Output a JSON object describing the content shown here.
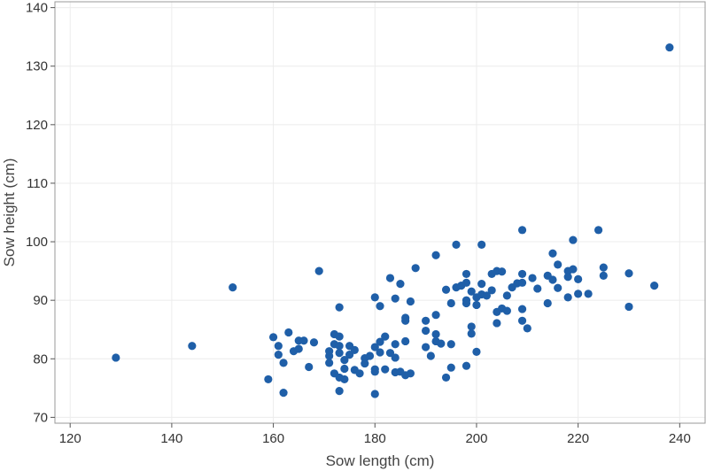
{
  "chart_data": {
    "type": "scatter",
    "xlabel": "Sow length (cm)",
    "ylabel": "Sow height (cm)",
    "xlim": [
      117,
      245
    ],
    "ylim": [
      69,
      141
    ],
    "xticks": [
      120,
      140,
      160,
      180,
      200,
      220,
      240
    ],
    "yticks": [
      70,
      80,
      90,
      100,
      110,
      120,
      130,
      140
    ],
    "grid": true,
    "marker_color": "#1f5fa8",
    "points": [
      [
        129,
        80.2
      ],
      [
        144,
        82.2
      ],
      [
        152,
        92.2
      ],
      [
        169,
        95
      ],
      [
        159,
        76.5
      ],
      [
        160,
        83.7
      ],
      [
        161,
        80.7
      ],
      [
        161,
        82.2
      ],
      [
        162,
        79.3
      ],
      [
        162,
        74.2
      ],
      [
        163,
        84.5
      ],
      [
        164,
        81.3
      ],
      [
        165,
        83.1
      ],
      [
        165,
        81.7
      ],
      [
        166,
        83.1
      ],
      [
        167,
        78.6
      ],
      [
        168,
        82.8
      ],
      [
        171,
        80.5
      ],
      [
        171,
        81.3
      ],
      [
        171,
        79.3
      ],
      [
        172,
        84.2
      ],
      [
        172,
        77.5
      ],
      [
        172,
        82.5
      ],
      [
        173,
        88.8
      ],
      [
        173,
        83.8
      ],
      [
        173,
        82.2
      ],
      [
        173,
        81
      ],
      [
        173,
        76.8
      ],
      [
        173,
        74.5
      ],
      [
        174,
        79.8
      ],
      [
        174,
        78.3
      ],
      [
        174,
        76.5
      ],
      [
        175,
        82.2
      ],
      [
        175,
        80.7
      ],
      [
        176,
        78.1
      ],
      [
        176,
        81.5
      ],
      [
        177,
        77.5
      ],
      [
        178,
        80.1
      ],
      [
        178,
        79.2
      ],
      [
        179,
        80.5
      ],
      [
        180,
        78.2
      ],
      [
        180,
        77.8
      ],
      [
        180,
        74
      ],
      [
        180,
        90.5
      ],
      [
        180,
        82
      ],
      [
        181,
        89
      ],
      [
        181,
        82.9
      ],
      [
        181,
        81.1
      ],
      [
        182,
        83.8
      ],
      [
        182,
        78.2
      ],
      [
        183,
        93.8
      ],
      [
        183,
        81
      ],
      [
        184,
        82.5
      ],
      [
        184,
        80.2
      ],
      [
        184,
        77.7
      ],
      [
        184,
        90.3
      ],
      [
        185,
        92.8
      ],
      [
        185,
        77.8
      ],
      [
        186,
        87
      ],
      [
        186,
        86.5
      ],
      [
        186,
        77.2
      ],
      [
        186,
        83
      ],
      [
        187,
        89.8
      ],
      [
        187,
        77.5
      ],
      [
        188,
        95.5
      ],
      [
        190,
        86.5
      ],
      [
        190,
        84.8
      ],
      [
        190,
        82
      ],
      [
        191,
        80.5
      ],
      [
        192,
        97.7
      ],
      [
        192,
        87.5
      ],
      [
        192,
        84.2
      ],
      [
        192,
        83
      ],
      [
        193,
        82.6
      ],
      [
        194,
        91.8
      ],
      [
        194,
        76.8
      ],
      [
        195,
        89.5
      ],
      [
        195,
        82.5
      ],
      [
        195,
        78.5
      ],
      [
        196,
        99.5
      ],
      [
        196,
        92.2
      ],
      [
        197,
        92.5
      ],
      [
        198,
        94.5
      ],
      [
        198,
        93
      ],
      [
        198,
        90
      ],
      [
        198,
        89.5
      ],
      [
        198,
        78.8
      ],
      [
        199,
        91.5
      ],
      [
        199,
        85.5
      ],
      [
        199,
        84.3
      ],
      [
        200,
        90.5
      ],
      [
        200,
        89.2
      ],
      [
        200,
        81.2
      ],
      [
        201,
        99.5
      ],
      [
        201,
        92.8
      ],
      [
        201,
        91
      ],
      [
        202,
        90.8
      ],
      [
        203,
        91.7
      ],
      [
        203,
        94.5
      ],
      [
        204,
        95
      ],
      [
        204,
        88
      ],
      [
        204,
        86.1
      ],
      [
        205,
        94.9
      ],
      [
        205,
        88.6
      ],
      [
        206,
        90.8
      ],
      [
        206,
        88.2
      ],
      [
        207,
        92.2
      ],
      [
        208,
        92.9
      ],
      [
        209,
        102
      ],
      [
        209,
        94.5
      ],
      [
        209,
        93
      ],
      [
        209,
        88.5
      ],
      [
        209,
        86.5
      ],
      [
        210,
        85.2
      ],
      [
        211,
        93.8
      ],
      [
        212,
        92
      ],
      [
        214,
        94.2
      ],
      [
        214,
        89.5
      ],
      [
        215,
        98
      ],
      [
        215,
        93.5
      ],
      [
        216,
        96.1
      ],
      [
        216,
        92.1
      ],
      [
        218,
        95
      ],
      [
        218,
        94
      ],
      [
        218,
        90.5
      ],
      [
        219,
        100.3
      ],
      [
        219,
        95.3
      ],
      [
        220,
        91.1
      ],
      [
        220,
        93.6
      ],
      [
        222,
        91.1
      ],
      [
        224,
        102
      ],
      [
        225,
        95.6
      ],
      [
        225,
        94.2
      ],
      [
        230,
        94.6
      ],
      [
        230,
        88.9
      ],
      [
        235,
        92.5
      ],
      [
        238,
        133.2
      ]
    ]
  }
}
